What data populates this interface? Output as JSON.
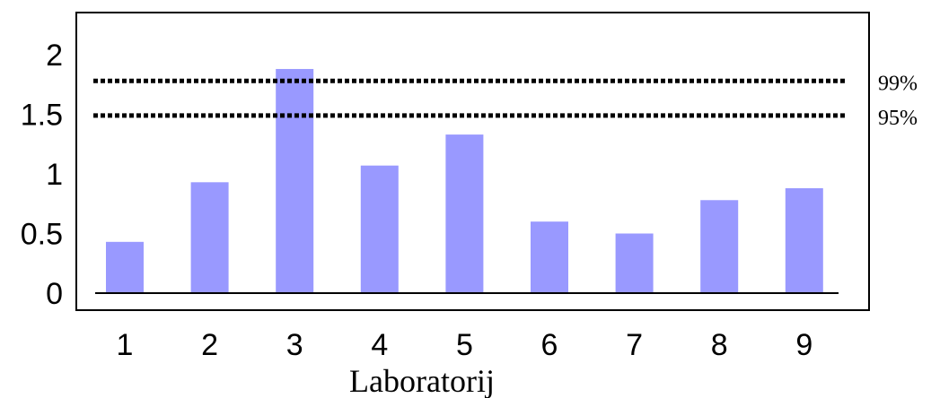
{
  "chart_data": {
    "type": "bar",
    "categories": [
      "1",
      "2",
      "3",
      "4",
      "5",
      "6",
      "7",
      "8",
      "9"
    ],
    "values": [
      0.43,
      0.93,
      1.88,
      1.07,
      1.33,
      0.6,
      0.5,
      0.78,
      0.88
    ],
    "title": "",
    "xlabel": "Laboratorij",
    "ylabel": "",
    "ylim": [
      0,
      2.2
    ],
    "yticks": [
      "0",
      "0.5",
      "1",
      "1.5",
      "2"
    ],
    "bar_color": "#9999ff",
    "reference_lines": [
      {
        "label": "99%",
        "value": 1.78
      },
      {
        "label": "95%",
        "value": 1.49
      }
    ],
    "grid": false,
    "legend": "none"
  }
}
